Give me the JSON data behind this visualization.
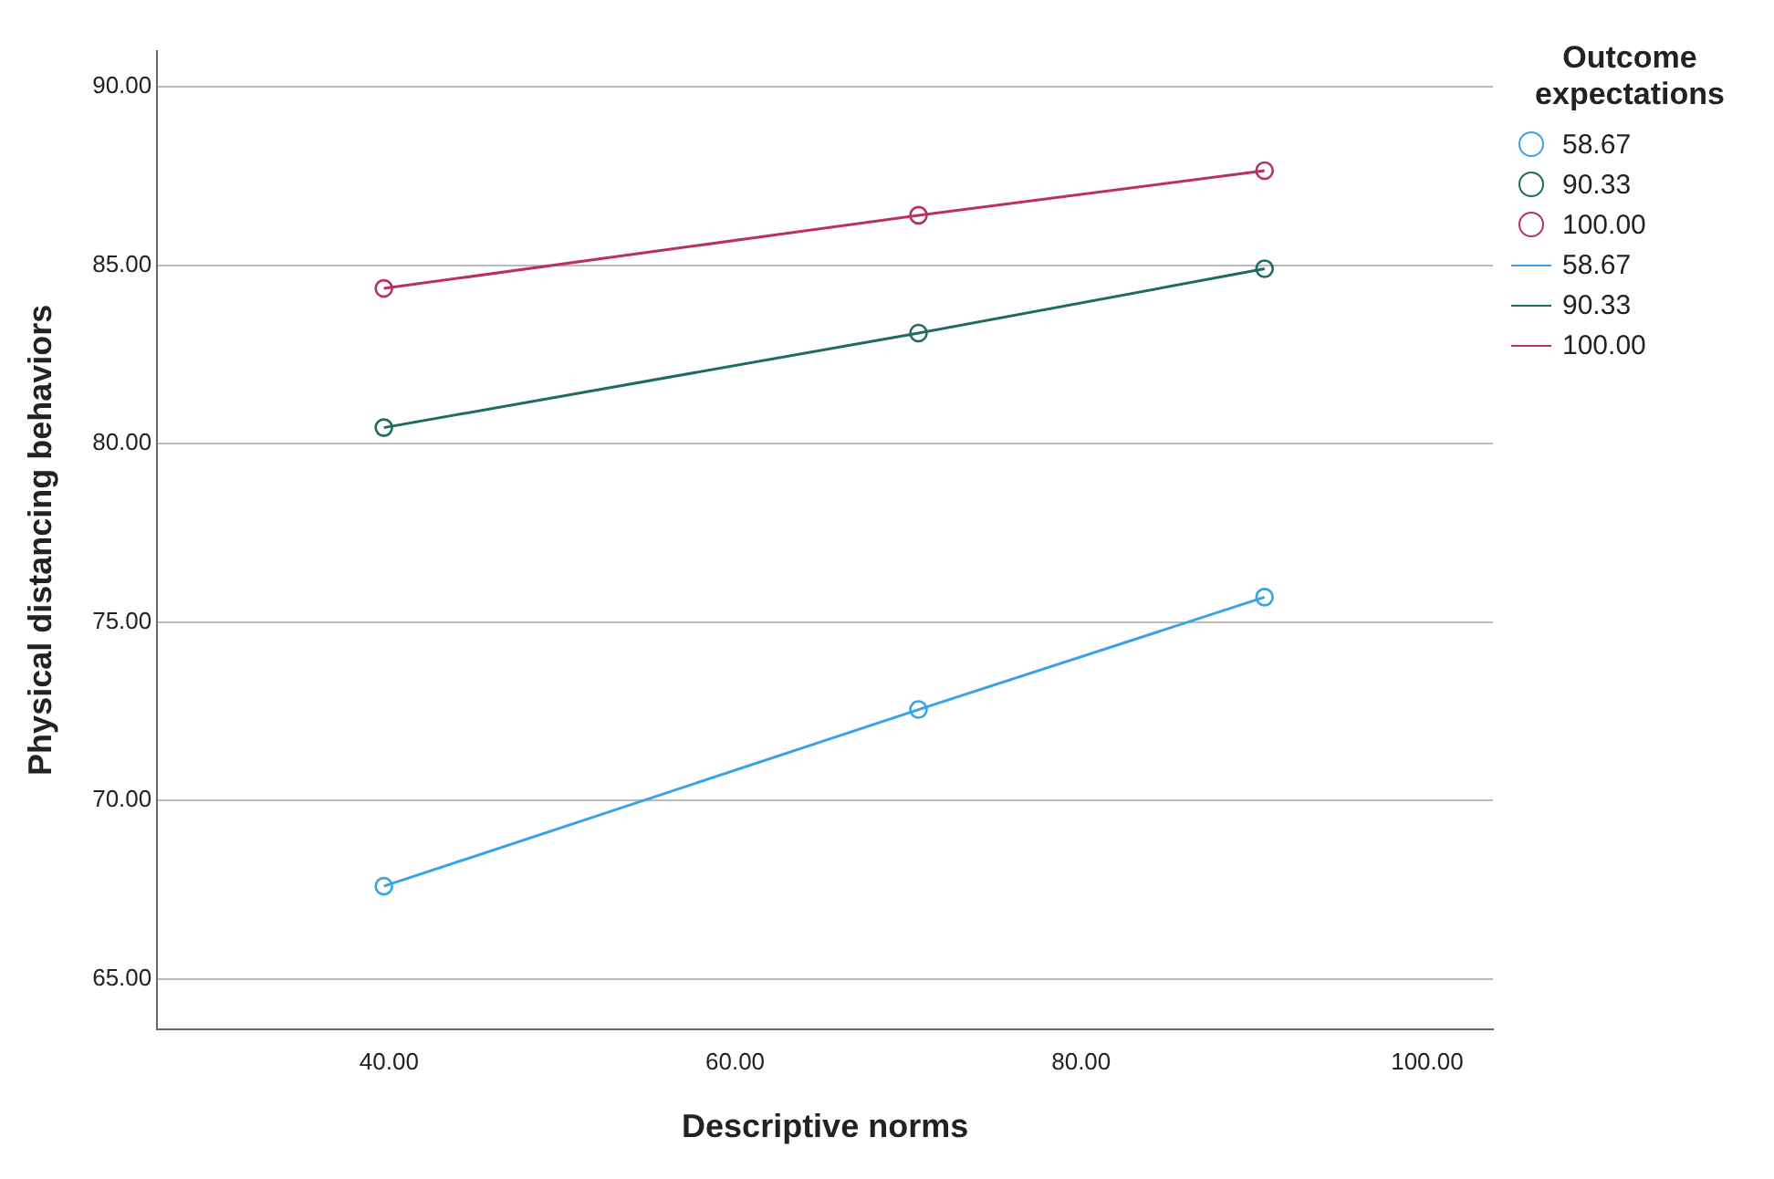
{
  "chart_data": {
    "type": "line",
    "xlabel": "Descriptive norms",
    "ylabel": "Physical distancing behaviors",
    "legend_title": "Outcome expectations",
    "legend": "right",
    "grid": "y",
    "marker": "circle",
    "line_style": "solid",
    "x": [
      39.7,
      70.6,
      90.6
    ],
    "xlim": [
      26.6,
      103.8
    ],
    "xticks": [
      {
        "value": 40,
        "label": "40.00"
      },
      {
        "value": 60,
        "label": "60.00"
      },
      {
        "value": 80,
        "label": "80.00"
      },
      {
        "value": 100,
        "label": "100.00"
      }
    ],
    "ylim": [
      63.6,
      91
    ],
    "yticks": [
      {
        "value": 65,
        "label": "65.00"
      },
      {
        "value": 70,
        "label": "70.00"
      },
      {
        "value": 75,
        "label": "75.00"
      },
      {
        "value": 80,
        "label": "80.00"
      },
      {
        "value": 85,
        "label": "85.00"
      },
      {
        "value": 90,
        "label": "90.00"
      }
    ],
    "series": [
      {
        "name": "58.67",
        "color": "#3aa3e3",
        "values": [
          67.6,
          72.55,
          75.7
        ]
      },
      {
        "name": "90.33",
        "color": "#1f6b62",
        "values": [
          80.45,
          83.1,
          84.9
        ]
      },
      {
        "name": "100.00",
        "color": "#b8325f",
        "values": [
          84.35,
          86.4,
          87.65
        ]
      }
    ]
  }
}
